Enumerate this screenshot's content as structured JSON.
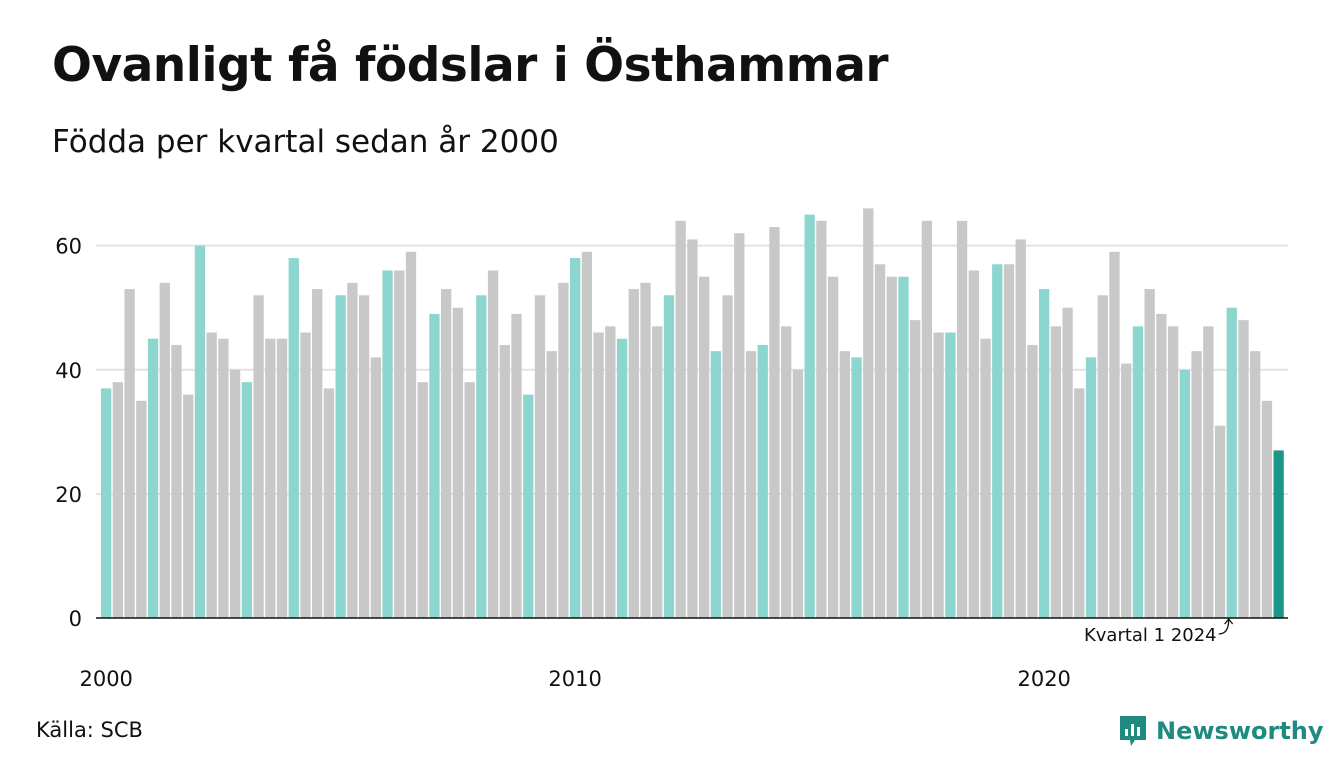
{
  "title": "Ovanligt få födslar i Östhammar",
  "subtitle": "Födda per kvartal sedan år 2000",
  "source": "Källa: SCB",
  "brand": {
    "name": "Newsworthy",
    "icon": "newsworthy-logo-icon"
  },
  "colors": {
    "q1": "#8dd5cf",
    "other": "#c8c8c8",
    "highlight": "#1b9688",
    "grid": "#e2e2e2",
    "axis": "#111111",
    "brand": "#1f8a80"
  },
  "chart_data": {
    "type": "bar",
    "x_start": "2000 Q1",
    "x_ticks": [
      "2000",
      "2010",
      "2020"
    ],
    "y_ticks": [
      0,
      20,
      40,
      60
    ],
    "ylim": [
      0,
      68
    ],
    "grid": true,
    "annotation": {
      "text": "Kvartal 1 2024",
      "target": "2024 Q1"
    },
    "values": [
      37,
      38,
      53,
      35,
      45,
      54,
      44,
      36,
      60,
      46,
      45,
      40,
      38,
      52,
      45,
      45,
      58,
      46,
      53,
      37,
      52,
      54,
      52,
      42,
      56,
      56,
      59,
      38,
      49,
      53,
      50,
      38,
      52,
      56,
      44,
      49,
      36,
      52,
      43,
      54,
      58,
      59,
      46,
      47,
      45,
      53,
      54,
      47,
      52,
      64,
      61,
      55,
      43,
      52,
      62,
      43,
      44,
      63,
      47,
      40,
      65,
      64,
      55,
      43,
      42,
      66,
      57,
      55,
      55,
      48,
      64,
      46,
      46,
      64,
      56,
      45,
      57,
      57,
      61,
      44,
      53,
      47,
      50,
      37,
      42,
      52,
      59,
      41,
      47,
      53,
      49,
      47,
      40,
      43,
      47,
      31,
      50,
      48,
      43,
      35,
      27
    ]
  }
}
